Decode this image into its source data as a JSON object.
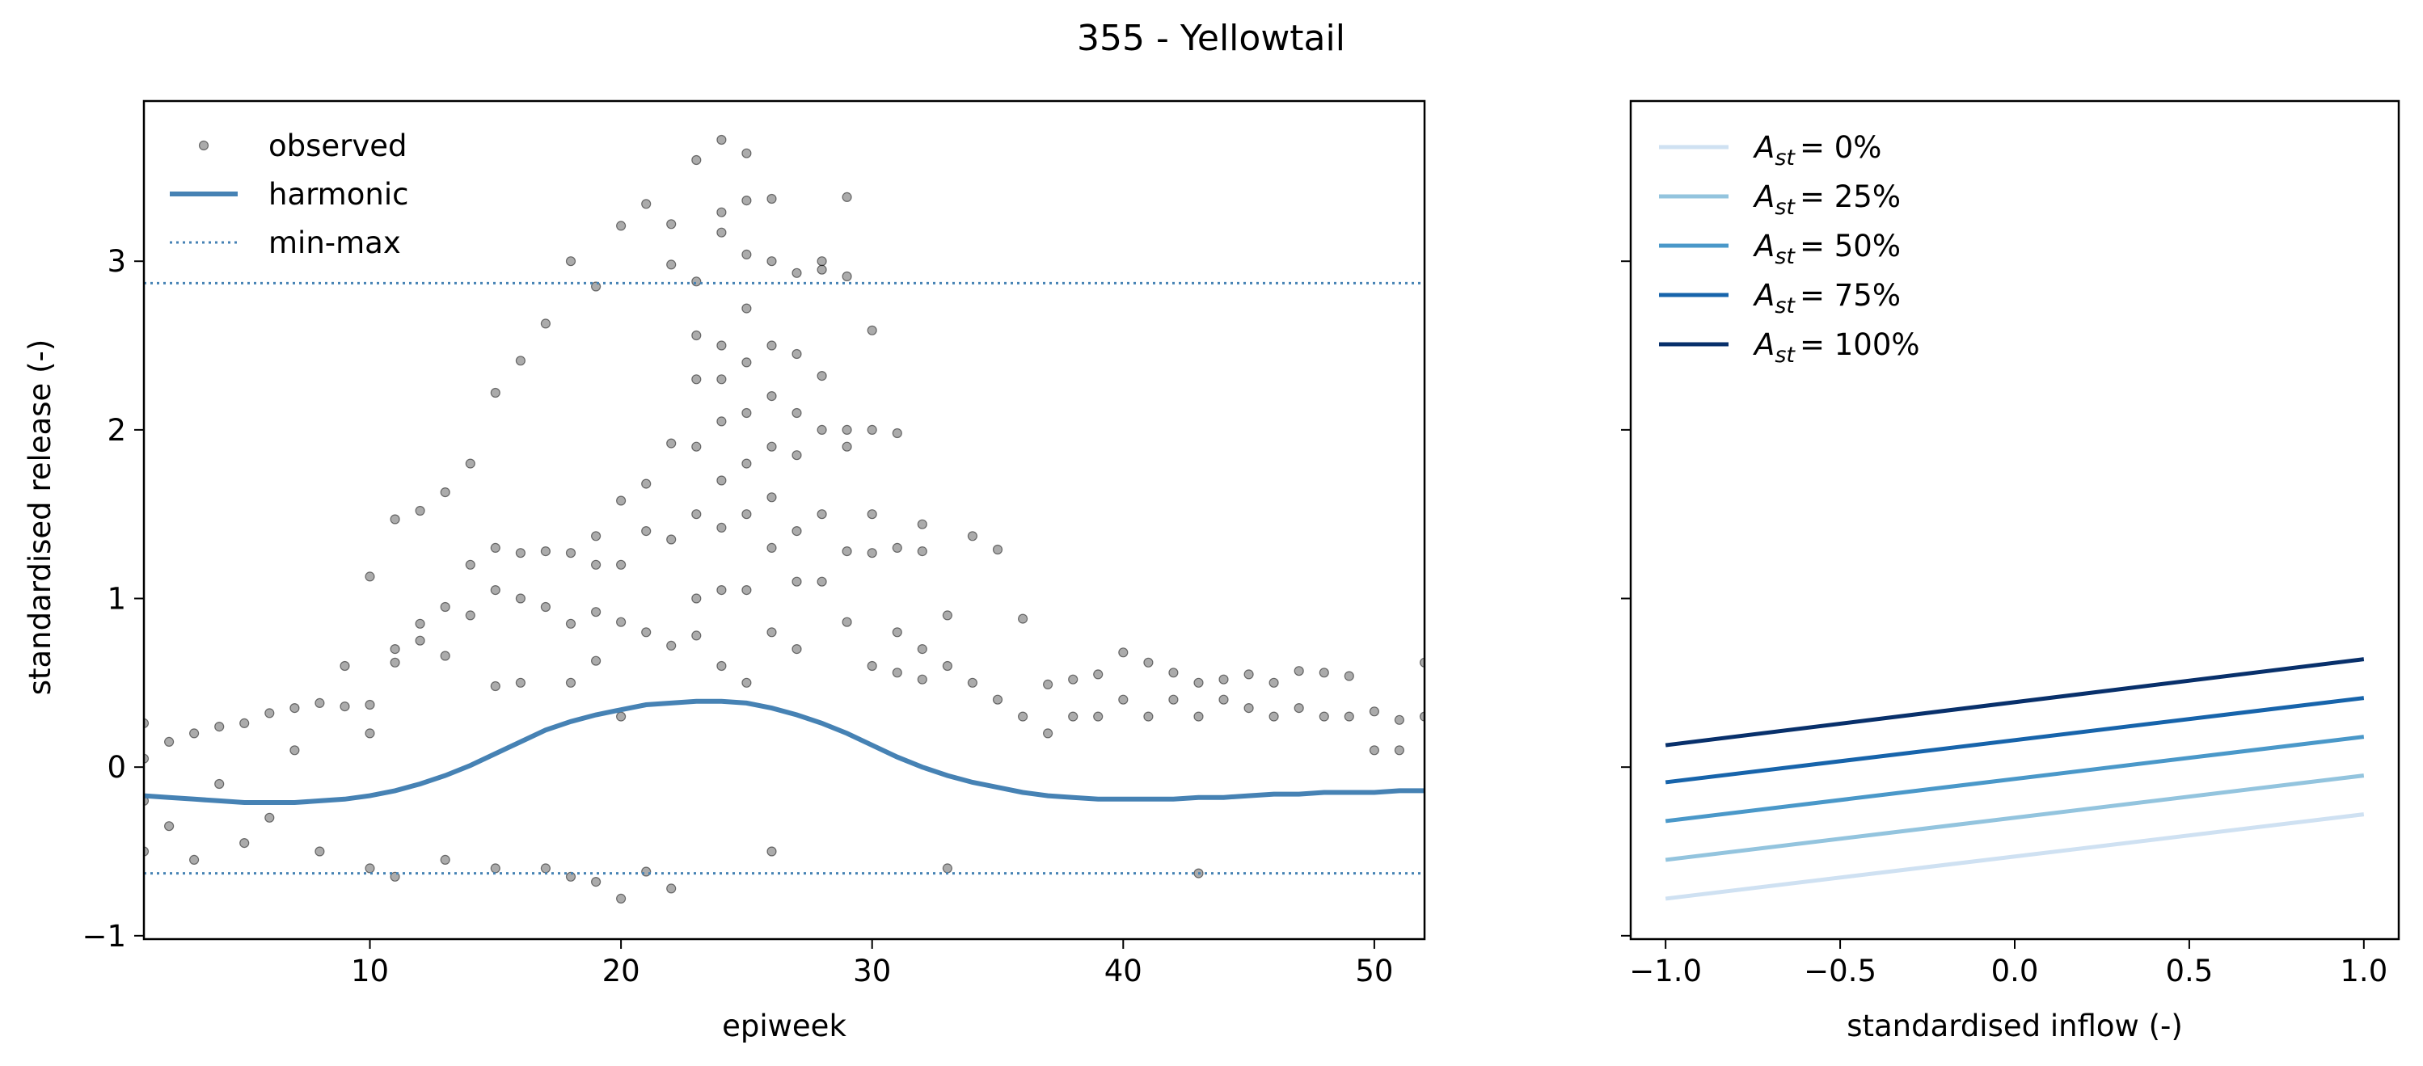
{
  "figure": {
    "title": "355 - Yellowtail"
  },
  "chart_data": [
    {
      "type": "scatter",
      "xlabel": "epiweek",
      "ylabel": "standardised release (-)",
      "xlim": [
        1,
        52
      ],
      "ylim": [
        -1.02,
        3.95
      ],
      "xticks": [
        10,
        20,
        30,
        40,
        50
      ],
      "yticks": [
        -1,
        0,
        1,
        2,
        3
      ],
      "ytick_labels": [
        "−1",
        "0",
        "1",
        "2",
        "3"
      ],
      "grid": false,
      "legend_position": "top-left",
      "legend": [
        {
          "label": "observed",
          "kind": "marker"
        },
        {
          "label": "harmonic",
          "kind": "line"
        },
        {
          "label": "min-max",
          "kind": "dotted"
        }
      ],
      "series": [
        {
          "name": "min-max",
          "kind": "hline",
          "values": [
            2.87,
            -0.63
          ],
          "color": "#4682b4"
        },
        {
          "name": "harmonic",
          "kind": "line",
          "color": "#4682b4",
          "x": [
            1,
            2,
            3,
            4,
            5,
            6,
            7,
            8,
            9,
            10,
            11,
            12,
            13,
            14,
            15,
            16,
            17,
            18,
            19,
            20,
            21,
            22,
            23,
            24,
            25,
            26,
            27,
            28,
            29,
            30,
            31,
            32,
            33,
            34,
            35,
            36,
            37,
            38,
            39,
            40,
            41,
            42,
            43,
            44,
            45,
            46,
            47,
            48,
            49,
            50,
            51,
            52
          ],
          "y": [
            -0.17,
            -0.18,
            -0.19,
            -0.2,
            -0.21,
            -0.21,
            -0.21,
            -0.2,
            -0.19,
            -0.17,
            -0.14,
            -0.1,
            -0.05,
            0.01,
            0.08,
            0.15,
            0.22,
            0.27,
            0.31,
            0.34,
            0.37,
            0.38,
            0.39,
            0.39,
            0.38,
            0.35,
            0.31,
            0.26,
            0.2,
            0.13,
            0.06,
            0.0,
            -0.05,
            -0.09,
            -0.12,
            -0.15,
            -0.17,
            -0.18,
            -0.19,
            -0.19,
            -0.19,
            -0.19,
            -0.18,
            -0.18,
            -0.17,
            -0.16,
            -0.16,
            -0.15,
            -0.15,
            -0.15,
            -0.14,
            -0.14
          ]
        },
        {
          "name": "observed",
          "kind": "scatter",
          "color": "#000000",
          "points": [
            [
              1,
              0.26
            ],
            [
              1,
              0.05
            ],
            [
              1,
              -0.2
            ],
            [
              1,
              -0.5
            ],
            [
              2,
              0.15
            ],
            [
              2,
              -0.35
            ],
            [
              3,
              0.2
            ],
            [
              3,
              -0.55
            ],
            [
              4,
              0.24
            ],
            [
              4,
              -0.1
            ],
            [
              5,
              0.26
            ],
            [
              5,
              -0.45
            ],
            [
              6,
              0.32
            ],
            [
              6,
              -0.3
            ],
            [
              7,
              0.35
            ],
            [
              7,
              0.1
            ],
            [
              8,
              0.38
            ],
            [
              8,
              -0.5
            ],
            [
              9,
              0.6
            ],
            [
              9,
              0.36
            ],
            [
              10,
              1.13
            ],
            [
              10,
              0.37
            ],
            [
              10,
              0.2
            ],
            [
              11,
              1.47
            ],
            [
              11,
              0.7
            ],
            [
              11,
              0.62
            ],
            [
              12,
              0.85
            ],
            [
              12,
              1.52
            ],
            [
              12,
              0.75
            ],
            [
              13,
              1.63
            ],
            [
              13,
              0.95
            ],
            [
              13,
              0.66
            ],
            [
              14,
              1.8
            ],
            [
              14,
              1.2
            ],
            [
              14,
              0.9
            ],
            [
              15,
              2.22
            ],
            [
              15,
              1.3
            ],
            [
              15,
              1.05
            ],
            [
              15,
              0.48
            ],
            [
              16,
              2.41
            ],
            [
              16,
              1.27
            ],
            [
              16,
              1.0
            ],
            [
              16,
              0.5
            ],
            [
              17,
              2.63
            ],
            [
              17,
              1.28
            ],
            [
              17,
              0.95
            ],
            [
              18,
              3.0
            ],
            [
              18,
              1.27
            ],
            [
              18,
              0.85
            ],
            [
              18,
              0.5
            ],
            [
              19,
              2.85
            ],
            [
              19,
              1.37
            ],
            [
              19,
              1.2
            ],
            [
              19,
              0.92
            ],
            [
              19,
              0.63
            ],
            [
              20,
              3.21
            ],
            [
              20,
              1.58
            ],
            [
              20,
              1.2
            ],
            [
              20,
              0.86
            ],
            [
              20,
              0.3
            ],
            [
              20,
              -0.78
            ],
            [
              21,
              3.34
            ],
            [
              21,
              1.68
            ],
            [
              21,
              1.4
            ],
            [
              21,
              0.8
            ],
            [
              21,
              -0.62
            ],
            [
              22,
              3.22
            ],
            [
              22,
              2.98
            ],
            [
              22,
              1.92
            ],
            [
              22,
              1.35
            ],
            [
              22,
              0.72
            ],
            [
              22,
              -0.72
            ],
            [
              23,
              3.6
            ],
            [
              23,
              2.88
            ],
            [
              23,
              2.56
            ],
            [
              23,
              2.3
            ],
            [
              23,
              1.9
            ],
            [
              23,
              1.5
            ],
            [
              23,
              1.0
            ],
            [
              23,
              0.78
            ],
            [
              24,
              3.72
            ],
            [
              24,
              3.29
            ],
            [
              24,
              3.17
            ],
            [
              24,
              2.5
            ],
            [
              24,
              2.3
            ],
            [
              24,
              2.05
            ],
            [
              24,
              1.7
            ],
            [
              24,
              1.42
            ],
            [
              24,
              1.05
            ],
            [
              24,
              0.6
            ],
            [
              25,
              3.64
            ],
            [
              25,
              3.36
            ],
            [
              25,
              3.04
            ],
            [
              25,
              2.72
            ],
            [
              25,
              2.4
            ],
            [
              25,
              2.1
            ],
            [
              25,
              1.8
            ],
            [
              25,
              1.5
            ],
            [
              25,
              1.05
            ],
            [
              25,
              0.5
            ],
            [
              26,
              3.37
            ],
            [
              26,
              3.0
            ],
            [
              26,
              2.5
            ],
            [
              26,
              2.2
            ],
            [
              26,
              1.9
            ],
            [
              26,
              1.6
            ],
            [
              26,
              1.3
            ],
            [
              26,
              0.8
            ],
            [
              27,
              2.93
            ],
            [
              27,
              2.45
            ],
            [
              27,
              2.1
            ],
            [
              27,
              1.85
            ],
            [
              27,
              1.4
            ],
            [
              27,
              1.1
            ],
            [
              27,
              0.7
            ],
            [
              28,
              3.0
            ],
            [
              28,
              2.95
            ],
            [
              28,
              2.32
            ],
            [
              28,
              2.0
            ],
            [
              28,
              1.5
            ],
            [
              28,
              1.1
            ],
            [
              29,
              3.38
            ],
            [
              29,
              2.91
            ],
            [
              29,
              2.0
            ],
            [
              29,
              1.9
            ],
            [
              29,
              1.28
            ],
            [
              29,
              0.86
            ],
            [
              30,
              2.59
            ],
            [
              30,
              2.0
            ],
            [
              30,
              1.5
            ],
            [
              30,
              1.27
            ],
            [
              30,
              0.6
            ],
            [
              31,
              1.98
            ],
            [
              31,
              1.3
            ],
            [
              31,
              0.8
            ],
            [
              31,
              0.56
            ],
            [
              32,
              1.44
            ],
            [
              32,
              1.28
            ],
            [
              32,
              0.7
            ],
            [
              32,
              0.52
            ],
            [
              33,
              0.9
            ],
            [
              33,
              0.6
            ],
            [
              34,
              1.37
            ],
            [
              34,
              0.5
            ],
            [
              35,
              1.29
            ],
            [
              35,
              0.4
            ],
            [
              36,
              0.88
            ],
            [
              36,
              0.3
            ],
            [
              37,
              0.49
            ],
            [
              37,
              0.2
            ],
            [
              38,
              0.52
            ],
            [
              38,
              0.3
            ],
            [
              39,
              0.55
            ],
            [
              39,
              0.3
            ],
            [
              40,
              0.68
            ],
            [
              40,
              0.4
            ],
            [
              41,
              0.62
            ],
            [
              41,
              0.3
            ],
            [
              42,
              0.56
            ],
            [
              42,
              0.4
            ],
            [
              43,
              0.5
            ],
            [
              43,
              0.3
            ],
            [
              44,
              0.52
            ],
            [
              44,
              0.4
            ],
            [
              45,
              0.55
            ],
            [
              45,
              0.35
            ],
            [
              46,
              0.5
            ],
            [
              46,
              0.3
            ],
            [
              47,
              0.57
            ],
            [
              47,
              0.35
            ],
            [
              48,
              0.56
            ],
            [
              48,
              0.3
            ],
            [
              49,
              0.54
            ],
            [
              49,
              0.3
            ],
            [
              50,
              0.33
            ],
            [
              50,
              0.1
            ],
            [
              51,
              0.28
            ],
            [
              51,
              0.1
            ],
            [
              52,
              0.62
            ],
            [
              52,
              0.3
            ],
            [
              10,
              -0.6
            ],
            [
              11,
              -0.65
            ],
            [
              13,
              -0.55
            ],
            [
              15,
              -0.6
            ],
            [
              17,
              -0.6
            ],
            [
              18,
              -0.65
            ],
            [
              19,
              -0.68
            ],
            [
              26,
              -0.5
            ],
            [
              33,
              -0.6
            ],
            [
              43,
              -0.63
            ]
          ]
        }
      ]
    },
    {
      "type": "line",
      "xlabel": "standardised inflow (-)",
      "ylabel": "",
      "xlim": [
        -1.1,
        1.1
      ],
      "ylim": [
        -1.02,
        3.95
      ],
      "xticks": [
        -1.0,
        -0.5,
        0.0,
        0.5,
        1.0
      ],
      "xtick_labels": [
        "−1.0",
        "−0.5",
        "0.0",
        "0.5",
        "1.0"
      ],
      "yticks": [
        -1,
        0,
        1,
        2,
        3
      ],
      "grid": false,
      "legend_position": "top-left",
      "series": [
        {
          "name": "= 0%",
          "color": "#cfe1f2",
          "x": [
            -1.0,
            1.0
          ],
          "y": [
            -0.78,
            -0.28
          ]
        },
        {
          "name": "= 25%",
          "color": "#93c4de",
          "x": [
            -1.0,
            1.0
          ],
          "y": [
            -0.55,
            -0.05
          ]
        },
        {
          "name": "= 50%",
          "color": "#4a98c9",
          "x": [
            -1.0,
            1.0
          ],
          "y": [
            -0.32,
            0.18
          ]
        },
        {
          "name": "= 75%",
          "color": "#1764ab",
          "x": [
            -1.0,
            1.0
          ],
          "y": [
            -0.09,
            0.41
          ]
        },
        {
          "name": "= 100%",
          "color": "#08306b",
          "x": [
            -1.0,
            1.0
          ],
          "y": [
            0.13,
            0.64
          ]
        }
      ],
      "legend_symbol": {
        "main": "A",
        "sub": "st"
      }
    }
  ]
}
